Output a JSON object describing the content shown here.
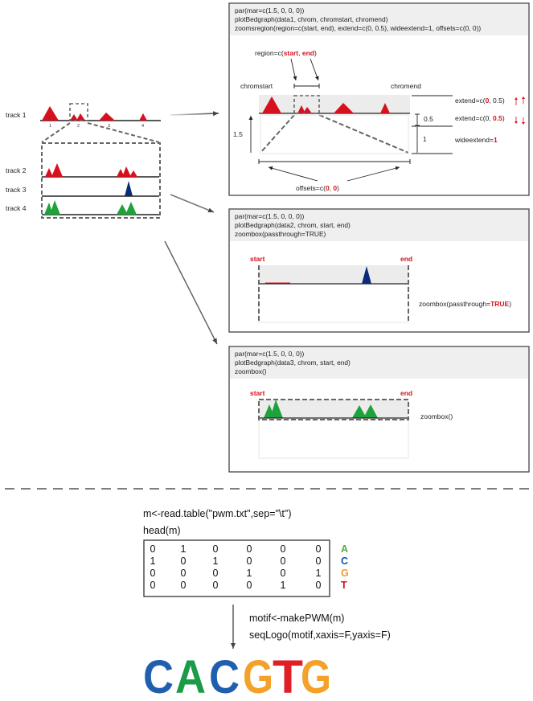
{
  "left": {
    "track1": "track 1",
    "track2": "track 2",
    "track3": "track 3",
    "track4": "track 4",
    "ticks": [
      "1",
      "2",
      "3",
      "4"
    ]
  },
  "panel1": {
    "code": [
      "par(mar=c(1.5, 0, 0, 0))",
      "plotBedgraph(data1, chrom, chromstart, chromend)",
      "zoomsregion(region=c(start, end), extend=c(0, 0.5), wideextend=1, offsets=c(0, 0))"
    ],
    "region_pre": "region=c(",
    "region_start": "start",
    "region_sep": ", ",
    "region_end": "end",
    "region_post": ")",
    "chromstart": "chromstart",
    "chromend": "chromend",
    "height_label": "1.5",
    "extend1_pre": "extend=c(",
    "extend1_a": "0",
    "extend1_mid": ", 0.5)",
    "extend2_pre": "extend=c(0, ",
    "extend2_b": "0.5",
    "extend2_post": ")",
    "half": "0.5",
    "one": "1",
    "wide_pre": "wideextend=",
    "wide_val": "1",
    "offsets_pre": "offsets=c(",
    "offsets_a": "0",
    "offsets_sep": ", ",
    "offsets_b": "0",
    "offsets_post": ")"
  },
  "panel2": {
    "code": [
      "par(mar=c(1.5,  0,  0,  0))",
      "plotBedgraph(data2, chrom, start, end)",
      "zoombox(passthrough=TRUE)"
    ],
    "start": "start",
    "end": "end",
    "note_pre": "zoombox(passthrough=",
    "note_val": "TRUE",
    "note_post": ")"
  },
  "panel3": {
    "code": [
      "par(mar=c(1.5,  0,  0,  0))",
      "plotBedgraph(data3, chrom, start, end)",
      "zoombox()"
    ],
    "start": "start",
    "end": "end",
    "note": "zoombox()"
  },
  "bottom": {
    "line1": "m<-read.table(\"pwm.txt\",sep=\"\\t\")",
    "line2": "head(m)",
    "matrix": [
      [
        "0",
        "1",
        "0",
        "0",
        "0",
        "0"
      ],
      [
        "1",
        "0",
        "1",
        "0",
        "0",
        "0"
      ],
      [
        "0",
        "0",
        "0",
        "1",
        "0",
        "1"
      ],
      [
        "0",
        "0",
        "0",
        "0",
        "1",
        "0"
      ]
    ],
    "bases": [
      "A",
      "C",
      "G",
      "T"
    ],
    "line3": "motif<-makePWM(m)",
    "line4": "seqLogo(motif,xaxis=F,yaxis=F)",
    "logo": [
      "C",
      "A",
      "C",
      "G",
      "T",
      "G"
    ]
  },
  "colors": {
    "red": "#d7101e",
    "blue": "#0b2a7a",
    "green": "#1ea33a",
    "A": "#53a943",
    "C": "#1452a6",
    "G": "#f4982a",
    "T": "#d7101e",
    "logoC": "#1f5fae",
    "logoA": "#1a9b48",
    "logoG": "#f4a12a",
    "logoT": "#e01e26"
  }
}
